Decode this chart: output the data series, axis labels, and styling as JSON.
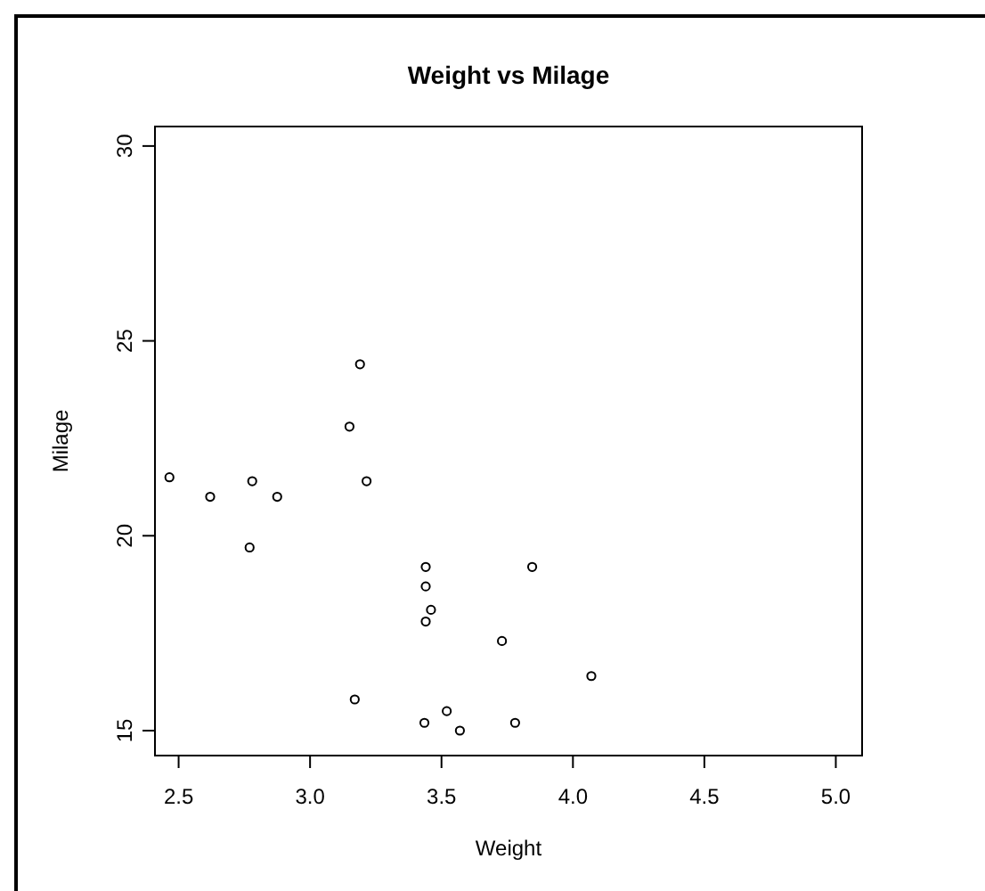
{
  "chart_data": {
    "type": "scatter",
    "title": "Weight vs Milage",
    "xlabel": "Weight",
    "ylabel": "Milage",
    "x": [
      2.465,
      2.62,
      2.78,
      2.875,
      2.77,
      3.19,
      3.15,
      3.215,
      3.44,
      3.44,
      3.46,
      3.44,
      3.845,
      3.73,
      4.07,
      3.17,
      3.52,
      3.435,
      3.57,
      3.78
    ],
    "values": [
      21.5,
      21.0,
      21.4,
      21.0,
      19.7,
      24.4,
      22.8,
      21.4,
      19.2,
      18.7,
      18.1,
      17.8,
      19.2,
      17.3,
      16.4,
      15.8,
      15.5,
      15.2,
      15.0,
      15.2
    ],
    "color": "#000000",
    "marker": "circle",
    "xlim": [
      2.41,
      5.1
    ],
    "ylim": [
      14.36,
      30.5
    ],
    "xticks": [
      {
        "value": 2.5,
        "label": "2.5"
      },
      {
        "value": 3,
        "label": "3.0"
      },
      {
        "value": 3.5,
        "label": "3.5"
      },
      {
        "value": 4,
        "label": "4.0"
      },
      {
        "value": 4.5,
        "label": "4.5"
      },
      {
        "value": 5,
        "label": "5.0"
      }
    ],
    "yticks": [
      15,
      20,
      25,
      30
    ],
    "grid": false
  }
}
